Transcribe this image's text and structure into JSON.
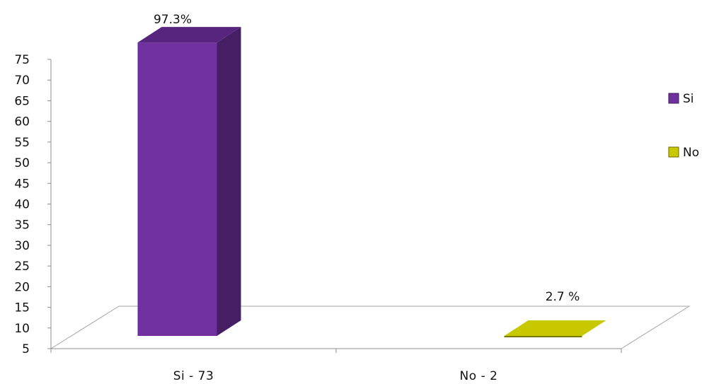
{
  "chart_data": {
    "type": "bar",
    "categories": [
      "Si - 73",
      "No - 2"
    ],
    "series": [
      {
        "name": "Si",
        "values": [
          73,
          null
        ],
        "color": "#7030a0"
      },
      {
        "name": "No",
        "values": [
          null,
          2
        ],
        "color": "#c8c800"
      }
    ],
    "data_labels": [
      "97.3%",
      "2.7 %"
    ],
    "ylim": [
      5,
      75
    ],
    "yticks": [
      5,
      10,
      15,
      20,
      25,
      30,
      35,
      40,
      45,
      50,
      55,
      60,
      65,
      70,
      75
    ],
    "grid": false,
    "legend": "right",
    "style": "3d-column"
  }
}
